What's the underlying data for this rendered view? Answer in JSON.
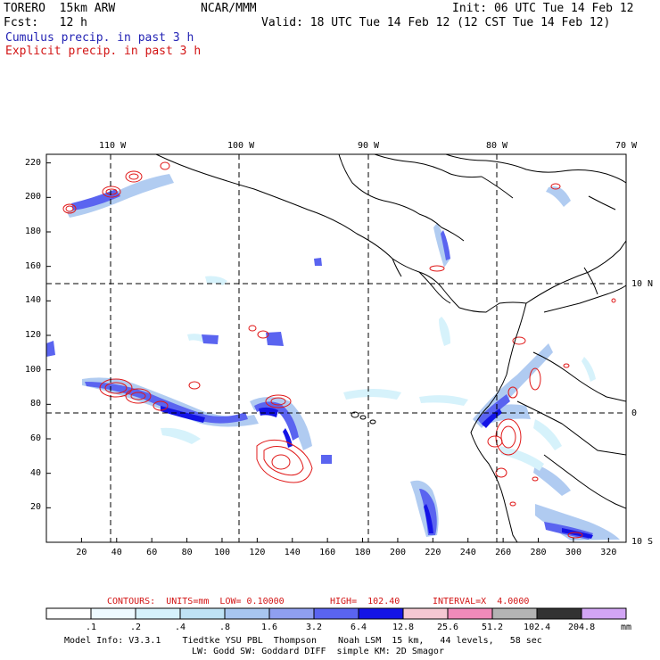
{
  "header": {
    "model": "TORERO  15km ARW",
    "org": "NCAR/MMM",
    "init": "Init: 06 UTC Tue 14 Feb 12",
    "fcst": "Fcst:   12 h",
    "valid": "Valid: 18 UTC Tue 14 Feb 12 (12 CST Tue 14 Feb 12)",
    "field1": "Cumulus precip. in past 3 h",
    "field2": "Explicit precip. in past 3 h"
  },
  "map": {
    "lon_labels": [
      "110 W",
      "100 W",
      "90 W",
      "80 W",
      "70 W"
    ],
    "lat_labels": [
      "10 N",
      "0",
      "10 S"
    ],
    "x_ticks": [
      "20",
      "40",
      "60",
      "80",
      "100",
      "120",
      "140",
      "160",
      "180",
      "200",
      "220",
      "240",
      "260",
      "280",
      "300",
      "320"
    ],
    "y_ticks": [
      "20",
      "40",
      "60",
      "80",
      "100",
      "120",
      "140",
      "160",
      "180",
      "200",
      "220"
    ],
    "x_range": [
      0,
      330
    ],
    "y_range": [
      0,
      225
    ]
  },
  "contours": {
    "units_text": "CONTOURS:  UNITS=mm  LOW= 0.10000",
    "high_text": "HIGH=  102.40",
    "interval_text": "INTERVAL=X  4.0000"
  },
  "colorbar": {
    "levels": [
      ".1",
      ".2",
      ".4",
      ".8",
      "1.6",
      "3.2",
      "6.4",
      "12.8",
      "25.6",
      "51.2",
      "102.4",
      "204.8"
    ],
    "colors": [
      "#ffffff",
      "#eefaff",
      "#d6f2fb",
      "#bfe3f5",
      "#a8c6f0",
      "#8f9ff0",
      "#5a64f0",
      "#1414e6",
      "#f5c8d2",
      "#f08ab9",
      "#b4b4b4",
      "#323232",
      "#d2a5f5"
    ],
    "unit": "mm"
  },
  "footer": {
    "line1": "Model Info: V3.3.1    Tiedtke YSU PBL  Thompson    Noah LSM  15 km,   44 levels,   58 sec",
    "line2": "LW: Godd SW: Goddard DIFF  simple KM: 2D Smagor"
  }
}
